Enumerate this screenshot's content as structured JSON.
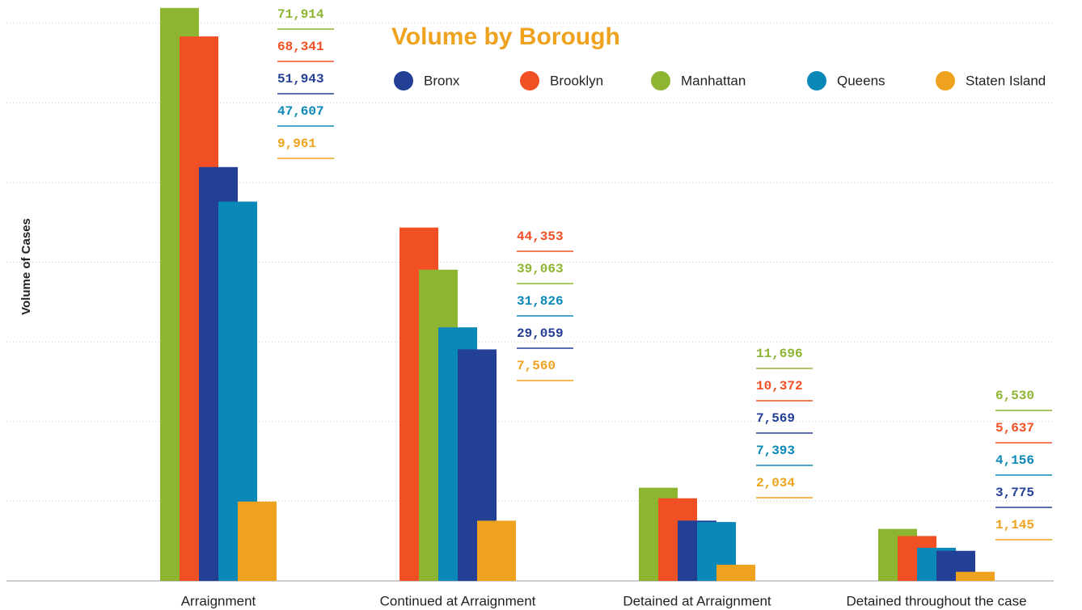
{
  "chart_data": {
    "type": "bar",
    "title": "Volume by Borough",
    "y_label": "Volume of Cases",
    "categories": [
      "Arraignment",
      "Continued at Arraignment",
      "Detained at Arraignment",
      "Detained throughout the case"
    ],
    "series": [
      {
        "name": "Bronx",
        "color": "#233f96",
        "values": [
          51943,
          29059,
          7569,
          3775
        ],
        "value_labels": [
          "51,943",
          "29,059",
          "7,569",
          "3,775"
        ]
      },
      {
        "name": "Brooklyn",
        "color": "#f05023",
        "values": [
          68341,
          44353,
          10372,
          5637
        ],
        "value_labels": [
          "68,341",
          "44,353",
          "10,372",
          "5,637"
        ]
      },
      {
        "name": "Manhattan",
        "color": "#8db532",
        "values": [
          71914,
          39063,
          11696,
          6530
        ],
        "value_labels": [
          "71,914",
          "39,063",
          "11,696",
          "6,530"
        ]
      },
      {
        "name": "Queens",
        "color": "#0a88b8",
        "values": [
          47607,
          31826,
          7393,
          4156
        ],
        "value_labels": [
          "47,607",
          "31,826",
          "7,393",
          "4,156"
        ]
      },
      {
        "name": "Staten Island",
        "color": "#eea21d",
        "values": [
          9961,
          7560,
          2034,
          1145
        ],
        "value_labels": [
          "9,961",
          "7,560",
          "2,034",
          "1,145"
        ]
      }
    ],
    "ylim": [
      0,
      72000
    ],
    "yticks": [
      0,
      10000,
      20000,
      30000,
      40000,
      50000,
      60000,
      70000
    ],
    "grid": true
  }
}
